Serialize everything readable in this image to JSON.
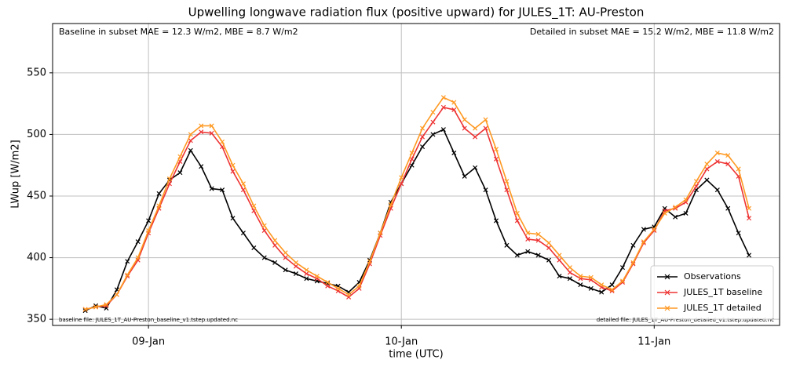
{
  "chart_data": {
    "type": "line",
    "title": "Upwelling longwave radiation flux (positive upward) for JULES_1T: AU-Preston",
    "xlabel": "time (UTC)",
    "ylabel": "LWup [W/m2]",
    "annotations": [
      "Baseline in subset MAE = 12.3 W/m2, MBE = 8.7 W/m2",
      "Detailed in subset MAE = 15.2 W/m2, MBE = 11.8 W/m2",
      "baseline file: JULES_1T_AU-Preston_baseline_v1.tstep.updated.nc",
      "detailed file: JULES_1T_AU-Preston_detailed_v1.tstep.updated.nc"
    ],
    "x": [
      18,
      19,
      20,
      21,
      22,
      23,
      24,
      25,
      26,
      27,
      28,
      29,
      30,
      31,
      32,
      33,
      34,
      35,
      36,
      37,
      38,
      39,
      40,
      41,
      42,
      43,
      44,
      45,
      46,
      47,
      48,
      49,
      50,
      51,
      52,
      53,
      54,
      55,
      56,
      57,
      58,
      59,
      60,
      61,
      62,
      63,
      64,
      65,
      66,
      67,
      68,
      69,
      70,
      71,
      72,
      73,
      74,
      75,
      76,
      77,
      78,
      79,
      80,
      81
    ],
    "xlim": [
      14.9,
      83.9
    ],
    "xticks": [
      {
        "value": 24,
        "label": "09-Jan"
      },
      {
        "value": 48,
        "label": "10-Jan"
      },
      {
        "value": 72,
        "label": "11-Jan"
      }
    ],
    "ylim": [
      345,
      590
    ],
    "yticks": [
      350,
      400,
      450,
      500,
      550
    ],
    "grid": true,
    "legend": "lower right",
    "series": [
      {
        "name": "Observations",
        "color": "#000000",
        "values": [
          357,
          361,
          359,
          374,
          397,
          413,
          430,
          452,
          463,
          469,
          487,
          474,
          456,
          455,
          432,
          420,
          408,
          400,
          396,
          390,
          387,
          383,
          381,
          379,
          377,
          372,
          380,
          398,
          420,
          445,
          460,
          475,
          490,
          500,
          504,
          485,
          466,
          473,
          455,
          430,
          410,
          402,
          405,
          402,
          398,
          385,
          383,
          378,
          375,
          372,
          378,
          392,
          410,
          423,
          425,
          440,
          433,
          436,
          455,
          463,
          455,
          440,
          420,
          402
        ]
      },
      {
        "name": "JULES_1T baseline",
        "color": "#ee3333",
        "values": [
          358,
          360,
          361,
          370,
          385,
          398,
          420,
          440,
          460,
          478,
          495,
          502,
          501,
          490,
          470,
          455,
          438,
          422,
          410,
          400,
          393,
          387,
          383,
          377,
          373,
          368,
          375,
          395,
          418,
          440,
          460,
          480,
          498,
          510,
          522,
          520,
          505,
          498,
          505,
          480,
          455,
          430,
          415,
          414,
          408,
          398,
          388,
          383,
          382,
          376,
          373,
          380,
          395,
          412,
          422,
          438,
          440,
          445,
          458,
          472,
          478,
          476,
          466,
          432
        ]
      },
      {
        "name": "JULES_1T detailed",
        "color": "#ff9922",
        "values": [
          358,
          360,
          362,
          370,
          386,
          400,
          422,
          442,
          464,
          482,
          500,
          507,
          507,
          494,
          475,
          460,
          442,
          426,
          414,
          404,
          396,
          390,
          385,
          380,
          375,
          370,
          377,
          397,
          420,
          443,
          465,
          485,
          505,
          518,
          530,
          526,
          512,
          505,
          512,
          488,
          462,
          436,
          420,
          419,
          412,
          402,
          392,
          385,
          384,
          378,
          374,
          381,
          396,
          413,
          423,
          436,
          441,
          447,
          462,
          476,
          485,
          483,
          472,
          440
        ]
      }
    ]
  }
}
